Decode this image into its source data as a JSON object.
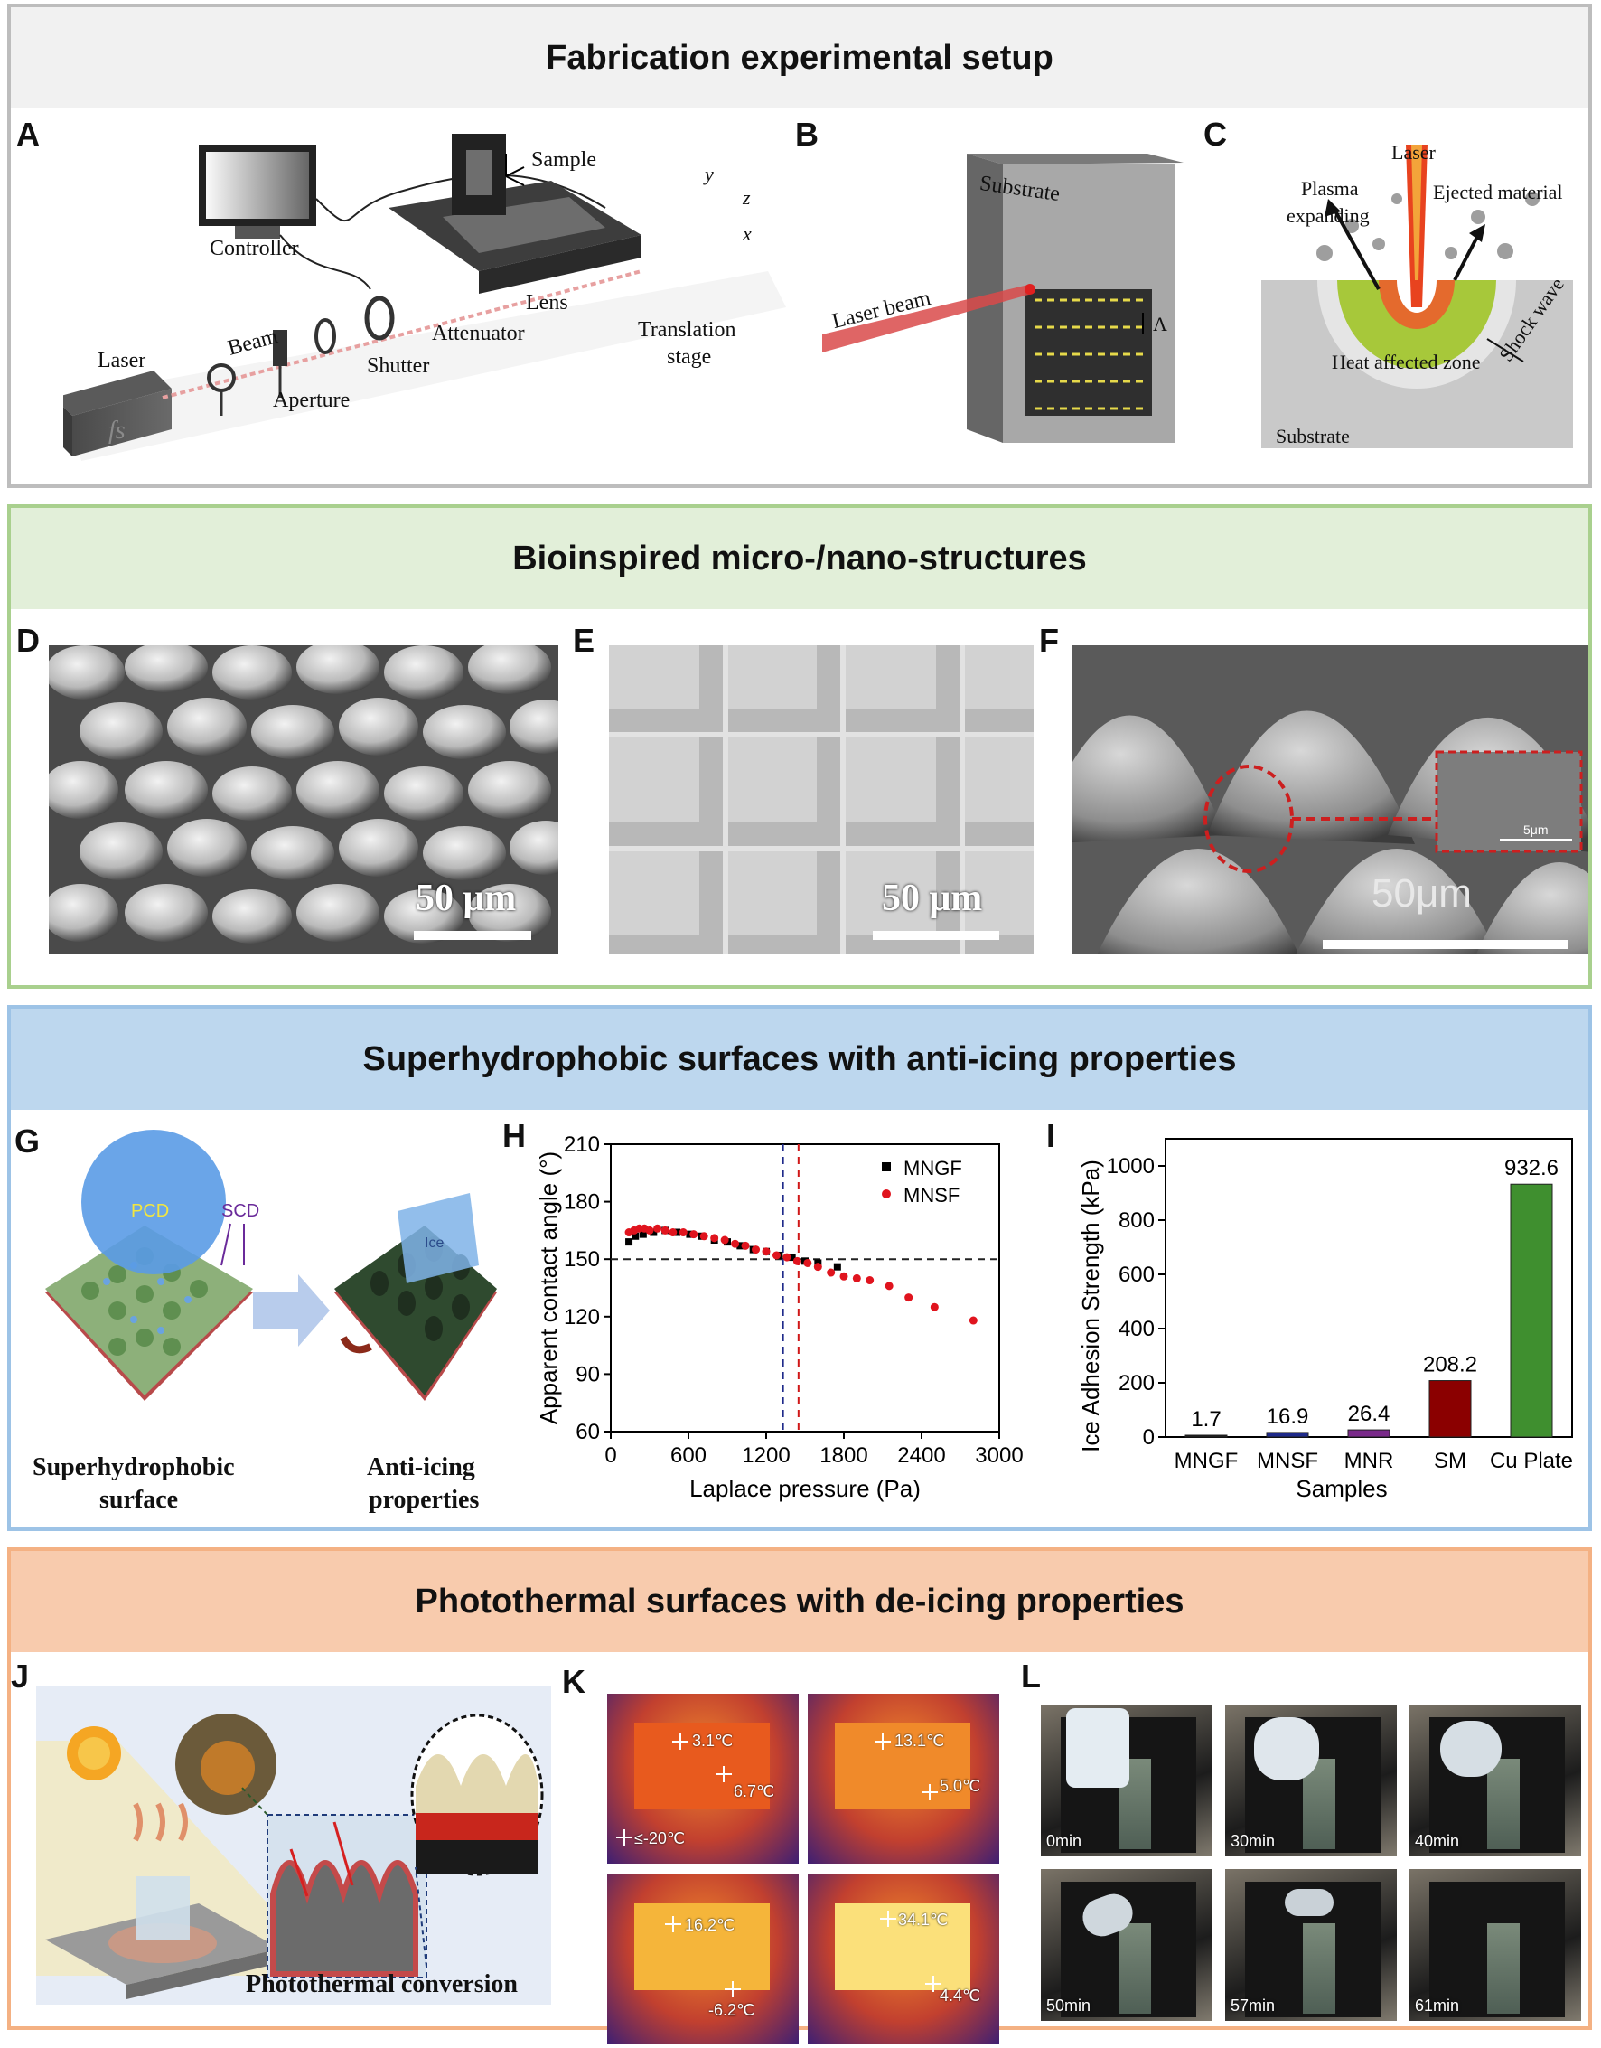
{
  "sections": {
    "fabrication": {
      "title": "Fabrication experimental setup"
    },
    "bioinspired": {
      "title": "Bioinspired micro-/nano-structures"
    },
    "superhydrophobic": {
      "title": "Superhydrophobic surfaces with anti-icing properties"
    },
    "photothermal": {
      "title": "Photothermal surfaces with de-icing properties"
    }
  },
  "panels": {
    "A": "A",
    "B": "B",
    "C": "C",
    "D": "D",
    "E": "E",
    "F": "F",
    "G": "G",
    "H": "H",
    "I": "I",
    "J": "J",
    "K": "K",
    "L": "L"
  },
  "panel_a": {
    "controller": "Controller",
    "sample": "Sample",
    "laser": "Laser",
    "beam": "Beam",
    "aperture": "Aperture",
    "shutter": "Shutter",
    "attenuator": "Attenuator",
    "lens": "Lens",
    "translation": "Translation",
    "stage": "stage",
    "fs": "fs",
    "ax_y": "y",
    "ax_z": "z",
    "ax_x": "x"
  },
  "panel_b": {
    "substrate": "Substrate",
    "laser_beam": "Laser beam",
    "lambda": "Λ"
  },
  "panel_c": {
    "laser": "Laser",
    "plasma": "Plasma",
    "expanding": "expanding",
    "ejected": "Ejected material",
    "haz": "Heat affected zone",
    "shock": "Shock wave",
    "substrate": "Substrate"
  },
  "panel_d": {
    "scale": "50 μm"
  },
  "panel_e": {
    "scale": "50 μm"
  },
  "panel_f": {
    "scale": "50μm",
    "inset_scale": "5μm"
  },
  "panel_g": {
    "pcd": "PCD",
    "scd": "SCD",
    "ice": "Ice",
    "left_1": "Superhydrophobic",
    "left_2": "surface",
    "right_1": "Anti-icing",
    "right_2": "properties"
  },
  "panel_j": {
    "caption": "Photothermal conversion"
  },
  "panel_k": {
    "readouts": [
      {
        "a": "3.1℃",
        "b": "6.7℃",
        "c": "≤-20℃"
      },
      {
        "a": "13.1℃",
        "b": "5.0℃"
      },
      {
        "a": "16.2℃",
        "b": "-6.2℃"
      },
      {
        "a": "34.1℃",
        "b": "4.4℃"
      }
    ]
  },
  "panel_l": {
    "times": [
      "0min",
      "30min",
      "40min",
      "50min",
      "57min",
      "61min"
    ]
  },
  "colors": {
    "fab_border": "#bdbdbd",
    "bio_border": "#a9d08e",
    "bio_head": "#e2efd9",
    "sh_border": "#9dc3e6",
    "sh_head": "#bdd7ee",
    "pt_border": "#f4b183",
    "pt_head": "#f8cbad"
  },
  "chart_data": [
    {
      "type": "scatter",
      "xlabel": "Laplace pressure (Pa)",
      "ylabel": "Apparent contact angle (°)",
      "xlim": [
        0,
        3000
      ],
      "ylim": [
        60,
        210
      ],
      "xticks": [
        "0",
        "600",
        "1200",
        "1800",
        "2400",
        "3000"
      ],
      "yticks": [
        "60",
        "90",
        "120",
        "150",
        "180",
        "210"
      ],
      "legend": "top-right",
      "reference_line_y": 150,
      "reference_lines_x": [
        1330,
        1450
      ],
      "series": [
        {
          "name": "MNGF",
          "color": "#000000",
          "x": [
            140,
            190,
            250,
            330,
            420,
            510,
            610,
            700,
            800,
            900,
            1000,
            1100,
            1200,
            1300,
            1400,
            1500,
            1600,
            1750
          ],
          "y": [
            159,
            162,
            163,
            164,
            165,
            164,
            163,
            162,
            160,
            159,
            157,
            155,
            154,
            152,
            151,
            149,
            148,
            146
          ]
        },
        {
          "name": "MNSF",
          "color": "#e0141e",
          "x": [
            140,
            180,
            220,
            260,
            300,
            360,
            420,
            480,
            560,
            640,
            720,
            800,
            880,
            960,
            1040,
            1120,
            1200,
            1280,
            1360,
            1440,
            1520,
            1600,
            1700,
            1800,
            1900,
            2000,
            2150,
            2300,
            2500,
            2800
          ],
          "y": [
            164,
            165,
            166,
            166,
            165,
            166,
            165,
            164,
            164,
            163,
            162,
            161,
            160,
            158,
            157,
            155,
            154,
            152,
            151,
            149,
            148,
            146,
            143,
            141,
            140,
            139,
            136,
            130,
            125,
            118
          ]
        }
      ]
    },
    {
      "type": "bar",
      "xlabel": "Samples",
      "ylabel": "Ice Adhesion Strength (kPa)",
      "ylim": [
        0,
        1100
      ],
      "yticks": [
        "0",
        "200",
        "400",
        "600",
        "800",
        "1000"
      ],
      "categories": [
        "MNGF",
        "MNSF",
        "MNR",
        "SM",
        "Cu Plate"
      ],
      "values": [
        1.7,
        16.9,
        26.4,
        208.2,
        932.6
      ],
      "value_labels": [
        "1.7",
        "16.9",
        "26.4",
        "208.2",
        "932.6"
      ],
      "colors": [
        "#1a1a1a",
        "#1f2a8a",
        "#7a2a8a",
        "#8b0000",
        "#3f8f2f"
      ]
    }
  ]
}
